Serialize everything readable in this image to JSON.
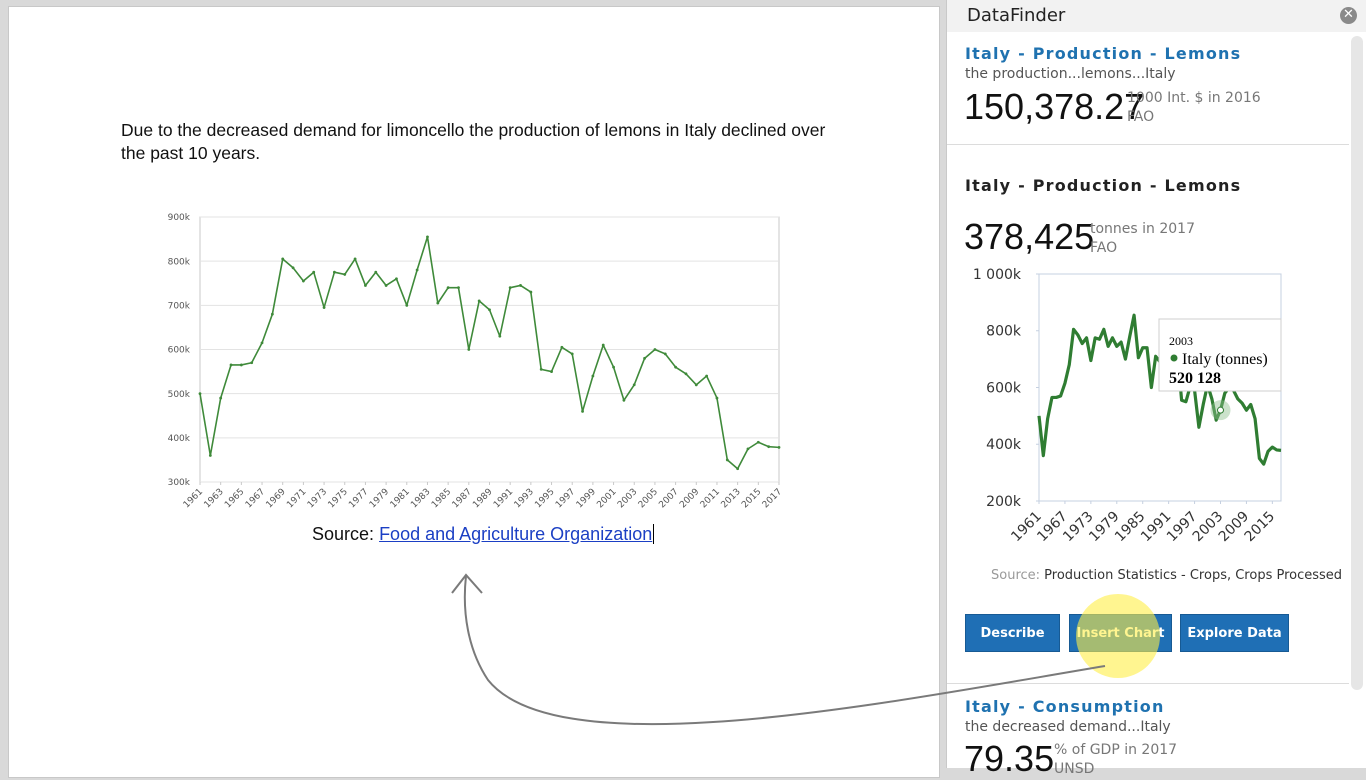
{
  "document": {
    "paragraph": "Due to the decreased demand for limoncello the production of lemons in Italy declined over the past 10 years.",
    "source_label": "Source:",
    "source_link": "Food and Agriculture Organization"
  },
  "chart_data": [
    {
      "type": "line",
      "color": "#3f8a3a",
      "grid": true,
      "x": [
        1961,
        1962,
        1963,
        1964,
        1965,
        1966,
        1967,
        1968,
        1969,
        1970,
        1971,
        1972,
        1973,
        1974,
        1975,
        1976,
        1977,
        1978,
        1979,
        1980,
        1981,
        1982,
        1983,
        1984,
        1985,
        1986,
        1987,
        1988,
        1989,
        1990,
        1991,
        1992,
        1993,
        1994,
        1995,
        1996,
        1997,
        1998,
        1999,
        2000,
        2001,
        2002,
        2003,
        2004,
        2005,
        2006,
        2007,
        2008,
        2009,
        2010,
        2011,
        2012,
        2013,
        2014,
        2015,
        2016,
        2017
      ],
      "values": [
        500000,
        360000,
        490000,
        565000,
        565000,
        570000,
        615000,
        680000,
        805000,
        785000,
        755000,
        775000,
        695000,
        775000,
        770000,
        805000,
        745000,
        775000,
        745000,
        760000,
        700000,
        780000,
        855000,
        705000,
        740000,
        740000,
        600000,
        710000,
        690000,
        630000,
        740000,
        745000,
        730000,
        555000,
        550000,
        605000,
        590000,
        460000,
        540000,
        610000,
        560000,
        485000,
        520128,
        580000,
        600000,
        590000,
        560000,
        545000,
        520000,
        540000,
        490000,
        350000,
        330000,
        375000,
        390000,
        380000,
        378425
      ],
      "xlim": [
        1961,
        2017
      ],
      "xticks": [
        1961,
        1963,
        1965,
        1967,
        1969,
        1971,
        1973,
        1975,
        1977,
        1979,
        1981,
        1983,
        1985,
        1987,
        1989,
        1991,
        1993,
        1995,
        1997,
        1999,
        2001,
        2003,
        2005,
        2007,
        2009,
        2011,
        2013,
        2015,
        2017
      ],
      "ylim": [
        300000,
        900000
      ],
      "yticks": [
        {
          "value": 300000,
          "label": "300k"
        },
        {
          "value": 400000,
          "label": "400k"
        },
        {
          "value": 500000,
          "label": "500k"
        },
        {
          "value": 600000,
          "label": "600k"
        },
        {
          "value": 700000,
          "label": "700k"
        },
        {
          "value": 800000,
          "label": "800k"
        },
        {
          "value": 900000,
          "label": "900k"
        }
      ]
    },
    {
      "type": "line",
      "grid": false,
      "x": [
        1961,
        1962,
        1963,
        1964,
        1965,
        1966,
        1967,
        1968,
        1969,
        1970,
        1971,
        1972,
        1973,
        1974,
        1975,
        1976,
        1977,
        1978,
        1979,
        1980,
        1981,
        1982,
        1983,
        1984,
        1985,
        1986,
        1987,
        1988,
        1989,
        1990,
        1991,
        1992,
        1993,
        1994,
        1995,
        1996,
        1997,
        1998,
        1999,
        2000,
        2001,
        2002,
        2003,
        2004,
        2005,
        2006,
        2007,
        2008,
        2009,
        2010,
        2011,
        2012,
        2013,
        2014,
        2015,
        2016,
        2017
      ],
      "series": [
        {
          "name": "Italy (tonnes)",
          "color": "#2f7d32",
          "values": [
            500000,
            360000,
            490000,
            565000,
            565000,
            570000,
            615000,
            680000,
            805000,
            785000,
            755000,
            775000,
            695000,
            775000,
            770000,
            805000,
            745000,
            775000,
            745000,
            760000,
            700000,
            780000,
            855000,
            705000,
            740000,
            740000,
            600000,
            710000,
            690000,
            630000,
            740000,
            745000,
            730000,
            555000,
            550000,
            605000,
            590000,
            460000,
            540000,
            610000,
            560000,
            485000,
            520128,
            580000,
            600000,
            590000,
            560000,
            545000,
            520000,
            540000,
            490000,
            350000,
            330000,
            375000,
            390000,
            380000,
            378425
          ]
        }
      ],
      "xlim": [
        1961,
        2017
      ],
      "xticks": [
        1961,
        1967,
        1973,
        1979,
        1985,
        1991,
        1997,
        2003,
        2009,
        2015
      ],
      "ylim": [
        200000,
        1000000
      ],
      "yticks": [
        {
          "value": 200000,
          "label": "200k"
        },
        {
          "value": 400000,
          "label": "400k"
        },
        {
          "value": 600000,
          "label": "600k"
        },
        {
          "value": 800000,
          "label": "800k"
        },
        {
          "value": 1000000,
          "label": "1 000k"
        }
      ],
      "tooltip": {
        "x": 2003,
        "value": 520128,
        "value_label": "520 128"
      }
    }
  ],
  "sidebar": {
    "title": "DataFinder",
    "cards": [
      {
        "title": "Italy - Production - Lemons",
        "subtitle": "the production...lemons...Italy",
        "value": "150,378.27",
        "unit": "1000 Int. $ in 2016",
        "source": "FAO"
      },
      {
        "title": "Italy - Production - Lemons",
        "value": "378,425",
        "unit": "tonnes in 2017",
        "source": "FAO",
        "chart_source_label": "Source:",
        "chart_source": "Production Statistics - Crops, Crops Processed",
        "buttons": [
          "Describe",
          "Insert Chart",
          "Explore Data"
        ]
      },
      {
        "title": "Italy - Consumption",
        "subtitle": "the decreased demand...Italy",
        "value": "79.35",
        "unit": "% of GDP in 2017",
        "source": "UNSD"
      }
    ]
  }
}
